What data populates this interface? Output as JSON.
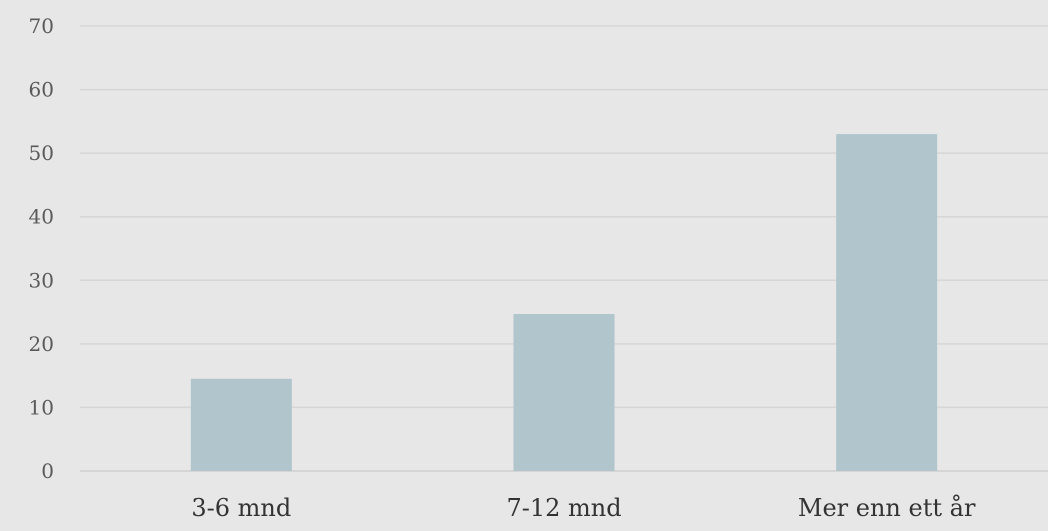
{
  "chart_data": {
    "type": "bar",
    "title": "",
    "xlabel": "",
    "ylabel": "",
    "categories": [
      "3-6 mnd",
      "7-12 mnd",
      "Mer enn ett år"
    ],
    "values": [
      14.5,
      24.7,
      53.0
    ],
    "ylim": [
      0,
      70
    ],
    "yticks": [
      0,
      10,
      20,
      30,
      40,
      50,
      60,
      70
    ],
    "ytick_labels": [
      "0",
      "10",
      "20",
      "30",
      "40",
      "50",
      "60",
      "70"
    ],
    "grid": true,
    "legend": "none",
    "bar_color": "#b1c5cd",
    "background_color": "#e7e7e7"
  }
}
